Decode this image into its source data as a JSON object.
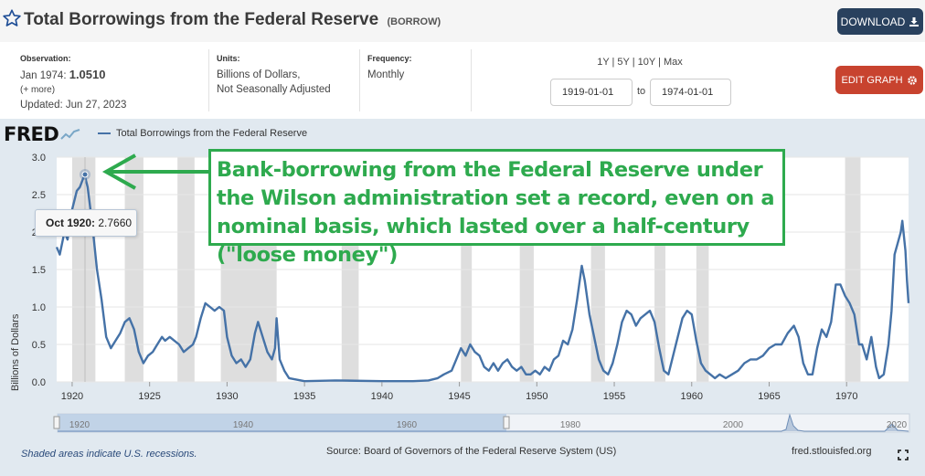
{
  "header": {
    "title": "Total Borrowings from the Federal Reserve",
    "series_code": "(BORROW)",
    "download_label": "DOWNLOAD"
  },
  "info": {
    "observation_label": "Observation:",
    "observation_date": "Jan 1974:",
    "observation_value": "1.0510",
    "more_label": "(+ more)",
    "updated": "Updated: Jun 27, 2023",
    "units_label": "Units:",
    "units_line1": "Billions of Dollars,",
    "units_line2": "Not Seasonally Adjusted",
    "frequency_label": "Frequency:",
    "frequency_value": "Monthly"
  },
  "controls": {
    "ranges": "1Y | 5Y | 10Y | Max",
    "start_date": "1919-01-01",
    "to_label": "to",
    "end_date": "1974-01-01",
    "edit_label": "EDIT GRAPH"
  },
  "chart_meta": {
    "logo": "FRED",
    "legend": "Total Borrowings from the Federal Reserve",
    "tooltip_date": "Oct 1920:",
    "tooltip_value": "2.7660",
    "annotation": "Bank-borrowing from the Federal Reserve under the Wilson administration set a record, even on a nominal basis, which lasted over a half-century (\"loose money\")",
    "nav_labels": [
      "1920",
      "1940",
      "1960",
      "1980",
      "2000",
      "2020"
    ]
  },
  "footer": {
    "recession_note": "Shaded areas indicate U.S. recessions.",
    "source": "Source: Board of Governors of the Federal Reserve System (US)",
    "site": "fred.stlouisfed.org"
  },
  "colors": {
    "series": "#4572a7",
    "recession": "#d8d8d8",
    "annotation": "#2eaa4e",
    "download": "#29415e",
    "edit": "#c8432f"
  },
  "chart_data": {
    "type": "line",
    "xlabel": "",
    "ylabel": "Billions of Dollars",
    "xlim": [
      1919.0,
      1974.0
    ],
    "ylim": [
      0,
      3.0
    ],
    "y_ticks": [
      0.0,
      0.5,
      1.0,
      1.5,
      2.0,
      2.5,
      3.0
    ],
    "x_ticks": [
      1920,
      1925,
      1930,
      1935,
      1940,
      1945,
      1950,
      1955,
      1960,
      1965,
      1970
    ],
    "grid": true,
    "legend": "top-left",
    "recessions": [
      [
        1920.0,
        1921.5
      ],
      [
        1923.4,
        1924.6
      ],
      [
        1926.8,
        1927.9
      ],
      [
        1929.6,
        1933.2
      ],
      [
        1937.4,
        1938.5
      ],
      [
        1945.1,
        1945.8
      ],
      [
        1948.9,
        1949.8
      ],
      [
        1953.5,
        1954.4
      ],
      [
        1957.6,
        1958.3
      ],
      [
        1960.3,
        1961.1
      ],
      [
        1969.9,
        1970.9
      ]
    ],
    "series": [
      {
        "name": "Total Borrowings from the Federal Reserve",
        "points": [
          [
            1919.0,
            1.8
          ],
          [
            1919.2,
            1.7
          ],
          [
            1919.5,
            2.0
          ],
          [
            1919.7,
            1.9
          ],
          [
            1920.0,
            2.3
          ],
          [
            1920.3,
            2.55
          ],
          [
            1920.5,
            2.6
          ],
          [
            1920.8,
            2.766
          ],
          [
            1921.0,
            2.6
          ],
          [
            1921.3,
            2.1
          ],
          [
            1921.6,
            1.5
          ],
          [
            1921.9,
            1.1
          ],
          [
            1922.2,
            0.6
          ],
          [
            1922.5,
            0.45
          ],
          [
            1922.8,
            0.55
          ],
          [
            1923.1,
            0.65
          ],
          [
            1923.4,
            0.8
          ],
          [
            1923.7,
            0.85
          ],
          [
            1924.0,
            0.7
          ],
          [
            1924.3,
            0.4
          ],
          [
            1924.6,
            0.25
          ],
          [
            1924.9,
            0.35
          ],
          [
            1925.2,
            0.4
          ],
          [
            1925.5,
            0.5
          ],
          [
            1925.8,
            0.6
          ],
          [
            1926.0,
            0.55
          ],
          [
            1926.3,
            0.6
          ],
          [
            1926.6,
            0.55
          ],
          [
            1926.9,
            0.5
          ],
          [
            1927.2,
            0.4
          ],
          [
            1927.5,
            0.45
          ],
          [
            1927.8,
            0.5
          ],
          [
            1928.0,
            0.6
          ],
          [
            1928.3,
            0.85
          ],
          [
            1928.6,
            1.05
          ],
          [
            1928.9,
            1.0
          ],
          [
            1929.2,
            0.95
          ],
          [
            1929.5,
            1.0
          ],
          [
            1929.8,
            0.95
          ],
          [
            1930.0,
            0.6
          ],
          [
            1930.3,
            0.35
          ],
          [
            1930.6,
            0.25
          ],
          [
            1930.9,
            0.3
          ],
          [
            1931.2,
            0.2
          ],
          [
            1931.5,
            0.3
          ],
          [
            1931.8,
            0.65
          ],
          [
            1932.0,
            0.8
          ],
          [
            1932.3,
            0.6
          ],
          [
            1932.6,
            0.4
          ],
          [
            1932.9,
            0.3
          ],
          [
            1933.1,
            0.45
          ],
          [
            1933.2,
            0.85
          ],
          [
            1933.4,
            0.3
          ],
          [
            1933.7,
            0.15
          ],
          [
            1934.0,
            0.05
          ],
          [
            1935.0,
            0.01
          ],
          [
            1937.0,
            0.02
          ],
          [
            1940.0,
            0.01
          ],
          [
            1942.0,
            0.01
          ],
          [
            1943.0,
            0.02
          ],
          [
            1943.6,
            0.05
          ],
          [
            1944.0,
            0.1
          ],
          [
            1944.5,
            0.15
          ],
          [
            1944.8,
            0.3
          ],
          [
            1945.1,
            0.45
          ],
          [
            1945.4,
            0.35
          ],
          [
            1945.7,
            0.5
          ],
          [
            1946.0,
            0.4
          ],
          [
            1946.3,
            0.35
          ],
          [
            1946.6,
            0.2
          ],
          [
            1946.9,
            0.15
          ],
          [
            1947.2,
            0.25
          ],
          [
            1947.5,
            0.15
          ],
          [
            1947.8,
            0.25
          ],
          [
            1948.1,
            0.3
          ],
          [
            1948.4,
            0.2
          ],
          [
            1948.7,
            0.15
          ],
          [
            1949.0,
            0.2
          ],
          [
            1949.3,
            0.1
          ],
          [
            1949.6,
            0.1
          ],
          [
            1949.9,
            0.15
          ],
          [
            1950.2,
            0.1
          ],
          [
            1950.5,
            0.2
          ],
          [
            1950.8,
            0.15
          ],
          [
            1951.1,
            0.3
          ],
          [
            1951.4,
            0.35
          ],
          [
            1951.7,
            0.55
          ],
          [
            1952.0,
            0.5
          ],
          [
            1952.3,
            0.7
          ],
          [
            1952.6,
            1.1
          ],
          [
            1952.9,
            1.55
          ],
          [
            1953.1,
            1.35
          ],
          [
            1953.4,
            0.9
          ],
          [
            1953.7,
            0.6
          ],
          [
            1954.0,
            0.3
          ],
          [
            1954.3,
            0.15
          ],
          [
            1954.6,
            0.1
          ],
          [
            1954.9,
            0.25
          ],
          [
            1955.2,
            0.5
          ],
          [
            1955.5,
            0.8
          ],
          [
            1955.8,
            0.95
          ],
          [
            1956.1,
            0.9
          ],
          [
            1956.4,
            0.75
          ],
          [
            1956.7,
            0.85
          ],
          [
            1957.0,
            0.9
          ],
          [
            1957.3,
            0.95
          ],
          [
            1957.6,
            0.8
          ],
          [
            1957.9,
            0.45
          ],
          [
            1958.2,
            0.15
          ],
          [
            1958.5,
            0.1
          ],
          [
            1958.8,
            0.35
          ],
          [
            1959.1,
            0.6
          ],
          [
            1959.4,
            0.85
          ],
          [
            1959.7,
            0.95
          ],
          [
            1960.0,
            0.9
          ],
          [
            1960.3,
            0.55
          ],
          [
            1960.6,
            0.25
          ],
          [
            1960.9,
            0.15
          ],
          [
            1961.2,
            0.1
          ],
          [
            1961.5,
            0.05
          ],
          [
            1961.8,
            0.1
          ],
          [
            1962.2,
            0.05
          ],
          [
            1962.6,
            0.1
          ],
          [
            1963.0,
            0.15
          ],
          [
            1963.4,
            0.25
          ],
          [
            1963.8,
            0.3
          ],
          [
            1964.2,
            0.3
          ],
          [
            1964.6,
            0.35
          ],
          [
            1965.0,
            0.45
          ],
          [
            1965.4,
            0.5
          ],
          [
            1965.8,
            0.5
          ],
          [
            1966.2,
            0.65
          ],
          [
            1966.6,
            0.75
          ],
          [
            1966.9,
            0.6
          ],
          [
            1967.2,
            0.25
          ],
          [
            1967.5,
            0.1
          ],
          [
            1967.8,
            0.1
          ],
          [
            1968.1,
            0.45
          ],
          [
            1968.4,
            0.7
          ],
          [
            1968.7,
            0.6
          ],
          [
            1969.0,
            0.8
          ],
          [
            1969.3,
            1.3
          ],
          [
            1969.6,
            1.3
          ],
          [
            1969.9,
            1.15
          ],
          [
            1970.2,
            1.05
          ],
          [
            1970.5,
            0.9
          ],
          [
            1970.8,
            0.5
          ],
          [
            1971.0,
            0.5
          ],
          [
            1971.3,
            0.3
          ],
          [
            1971.6,
            0.6
          ],
          [
            1971.9,
            0.2
          ],
          [
            1972.1,
            0.05
          ],
          [
            1972.4,
            0.1
          ],
          [
            1972.7,
            0.5
          ],
          [
            1972.9,
            0.95
          ],
          [
            1973.1,
            1.7
          ],
          [
            1973.3,
            1.85
          ],
          [
            1973.5,
            2.0
          ],
          [
            1973.6,
            2.15
          ],
          [
            1973.8,
            1.75
          ],
          [
            1973.9,
            1.35
          ],
          [
            1974.0,
            1.051
          ]
        ]
      }
    ]
  }
}
